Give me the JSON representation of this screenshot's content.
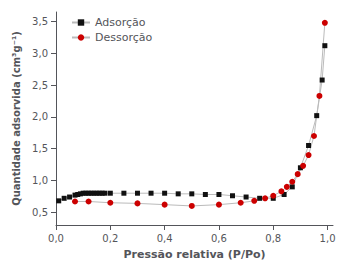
{
  "chart_data": {
    "type": "line",
    "xlabel": "Pressão relativa (P/Po)",
    "ylabel": "Quantidade adsorvida (cm³g⁻¹)",
    "color": "#bbbbbb",
    "series": [
      {
        "name": "Adsorção",
        "color": "#111111",
        "marker": "square",
        "x": [
          0.01,
          0.03,
          0.05,
          0.07,
          0.08,
          0.09,
          0.1,
          0.11,
          0.12,
          0.13,
          0.14,
          0.15,
          0.16,
          0.17,
          0.18,
          0.2,
          0.25,
          0.3,
          0.35,
          0.4,
          0.45,
          0.5,
          0.55,
          0.6,
          0.65,
          0.7,
          0.75,
          0.8,
          0.84,
          0.87,
          0.9,
          0.93,
          0.96,
          0.98,
          0.99
        ],
        "values": [
          0.68,
          0.72,
          0.74,
          0.77,
          0.78,
          0.79,
          0.8,
          0.8,
          0.8,
          0.8,
          0.8,
          0.8,
          0.8,
          0.8,
          0.8,
          0.8,
          0.8,
          0.8,
          0.8,
          0.8,
          0.79,
          0.79,
          0.78,
          0.78,
          0.76,
          0.74,
          0.72,
          0.72,
          0.78,
          0.9,
          1.2,
          1.55,
          2.02,
          2.58,
          3.12
        ]
      },
      {
        "name": "Dessorção",
        "color": "#cc0000",
        "marker": "circle",
        "x": [
          0.99,
          0.97,
          0.95,
          0.93,
          0.91,
          0.89,
          0.87,
          0.85,
          0.83,
          0.8,
          0.77,
          0.73,
          0.68,
          0.6,
          0.5,
          0.4,
          0.3,
          0.2,
          0.12,
          0.07
        ],
        "values": [
          3.48,
          2.33,
          1.7,
          1.4,
          1.23,
          1.1,
          0.98,
          0.9,
          0.83,
          0.76,
          0.72,
          0.68,
          0.65,
          0.62,
          0.6,
          0.62,
          0.64,
          0.65,
          0.67,
          0.67
        ]
      }
    ],
    "xlim": [
      0.0,
      1.02
    ],
    "ylim": [
      0.3,
      3.65
    ],
    "xticks": [
      {
        "value": 0.0,
        "label": "0,0"
      },
      {
        "value": 0.2,
        "label": "0,2"
      },
      {
        "value": 0.4,
        "label": "0,4"
      },
      {
        "value": 0.6,
        "label": "0,6"
      },
      {
        "value": 0.8,
        "label": "0,8"
      },
      {
        "value": 1.0,
        "label": "1,0"
      }
    ],
    "yticks": [
      {
        "value": 0.5,
        "label": "0,5"
      },
      {
        "value": 1.0,
        "label": "1,0"
      },
      {
        "value": 1.5,
        "label": "1,5"
      },
      {
        "value": 2.0,
        "label": "2,0"
      },
      {
        "value": 2.5,
        "label": "2,5"
      },
      {
        "value": 3.0,
        "label": "3,0"
      },
      {
        "value": 3.5,
        "label": "3,5"
      }
    ],
    "grid": false,
    "legend": "upper left"
  }
}
